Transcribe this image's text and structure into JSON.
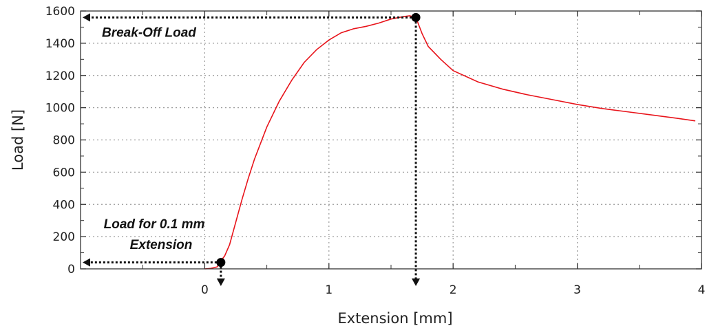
{
  "chart_data": {
    "type": "line",
    "xlabel": "Extension [mm]",
    "ylabel": "Load [N]",
    "xlim": [
      -1,
      4
    ],
    "ylim": [
      0,
      1600
    ],
    "x_ticks": [
      0,
      1,
      2,
      3,
      4
    ],
    "y_ticks": [
      0,
      200,
      400,
      600,
      800,
      1000,
      1200,
      1400,
      1600
    ],
    "grid": true,
    "line_color": "#e8141b",
    "series": [
      {
        "x": [
          0.0,
          0.05,
          0.1,
          0.12,
          0.16,
          0.2,
          0.25,
          0.3,
          0.35,
          0.4,
          0.5,
          0.6,
          0.7,
          0.8,
          0.9,
          1.0,
          1.1,
          1.2,
          1.3,
          1.4,
          1.5,
          1.6,
          1.65,
          1.7,
          1.75,
          1.8,
          1.9,
          2.0,
          2.2,
          2.4,
          2.6,
          2.8,
          3.0,
          3.2,
          3.4,
          3.6,
          3.8,
          3.95
        ],
        "y": [
          0,
          3,
          12,
          40,
          80,
          150,
          290,
          430,
          560,
          680,
          880,
          1040,
          1170,
          1280,
          1360,
          1420,
          1465,
          1490,
          1505,
          1525,
          1550,
          1565,
          1570,
          1560,
          1460,
          1380,
          1300,
          1230,
          1160,
          1115,
          1080,
          1050,
          1020,
          995,
          975,
          955,
          935,
          918
        ]
      }
    ],
    "annotations": [
      {
        "text": "Break-Off Load",
        "x": 1.7,
        "y": 1560
      },
      {
        "text": "Load for 0.1 mm",
        "x": 0.13,
        "y": 40
      },
      {
        "text": "Extension",
        "x": 0.13,
        "y": 40
      }
    ]
  }
}
